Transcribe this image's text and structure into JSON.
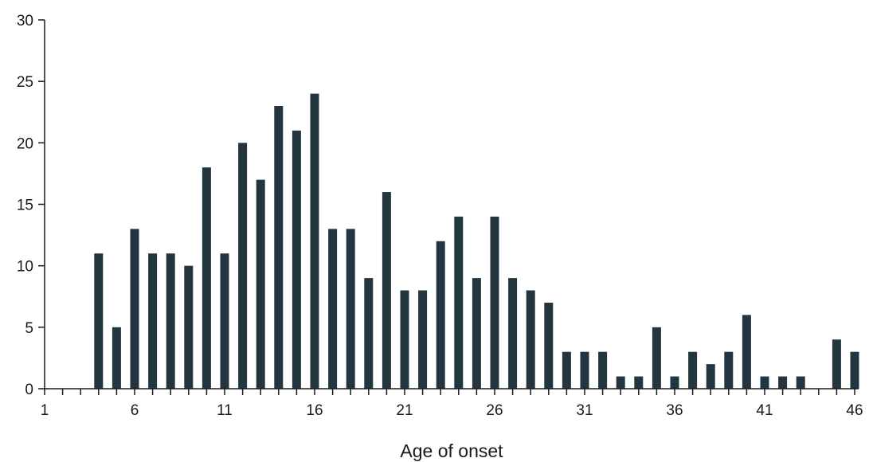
{
  "chart_data": {
    "type": "bar",
    "title": "",
    "xlabel": "Age of onset",
    "ylabel": "",
    "x": [
      1,
      2,
      3,
      4,
      5,
      6,
      7,
      8,
      9,
      10,
      11,
      12,
      13,
      14,
      15,
      16,
      17,
      18,
      19,
      20,
      21,
      22,
      23,
      24,
      25,
      26,
      27,
      28,
      29,
      30,
      31,
      32,
      33,
      34,
      35,
      36,
      37,
      38,
      39,
      40,
      41,
      42,
      43,
      44,
      45,
      46
    ],
    "values": [
      0,
      0,
      0,
      11,
      5,
      13,
      11,
      11,
      10,
      18,
      11,
      20,
      17,
      23,
      21,
      24,
      13,
      13,
      9,
      16,
      8,
      8,
      12,
      14,
      9,
      14,
      9,
      8,
      7,
      3,
      3,
      3,
      1,
      1,
      5,
      1,
      3,
      2,
      3,
      6,
      1,
      1,
      1,
      0,
      4,
      3
    ],
    "x_tick_labels": [
      "1",
      "6",
      "11",
      "16",
      "21",
      "26",
      "31",
      "36",
      "41",
      "46"
    ],
    "x_tick_values": [
      1,
      6,
      11,
      16,
      21,
      26,
      31,
      36,
      41,
      46
    ],
    "y_tick_labels": [
      "0",
      "5",
      "10",
      "15",
      "20",
      "25",
      "30"
    ],
    "y_tick_values": [
      0,
      5,
      10,
      15,
      20,
      25,
      30
    ],
    "xlim": [
      1,
      46
    ],
    "ylim": [
      0,
      30
    ],
    "grid": false,
    "bar_color": "#233640"
  }
}
